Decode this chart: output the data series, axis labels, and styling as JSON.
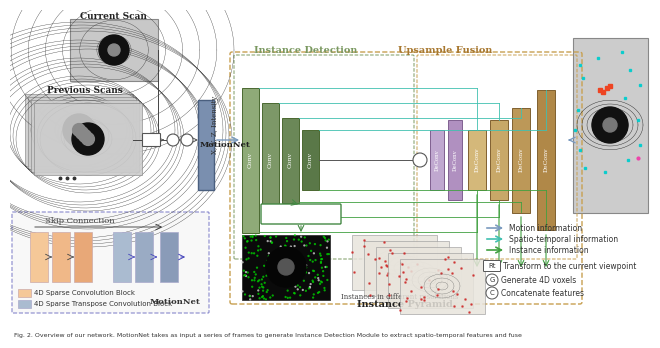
{
  "bg_color": "#ffffff",
  "caption": "Fig. 2. Overview of our network. MotionNet takes as input a series of frames to generate Instance Detection Module to extract spatio-temporal features and fuse",
  "motionnet_color": "#7a8faf",
  "conv_colors": [
    "#8faa78",
    "#7a9868",
    "#6a8858"
  ],
  "deconv_colors": [
    "#d4b87a",
    "#c8a868",
    "#bc9858",
    "#b08848"
  ],
  "purple_colors": [
    "#c0a8d0",
    "#b498c4"
  ],
  "skip_enc_colors": [
    "#f5c898",
    "#f0b888",
    "#e8a878"
  ],
  "skip_dec_colors": [
    "#aabbd0",
    "#9aabc4",
    "#8a9bb8"
  ],
  "instance_det_color": "#7a9860",
  "upsample_color": "#a87830",
  "outer_box_color": "#c8a050",
  "center_head_color": "#448844",
  "motion_arrow_color": "#7a9abf",
  "spatio_arrow_color": "#40c0b0",
  "instance_arrow_color": "#40a040"
}
